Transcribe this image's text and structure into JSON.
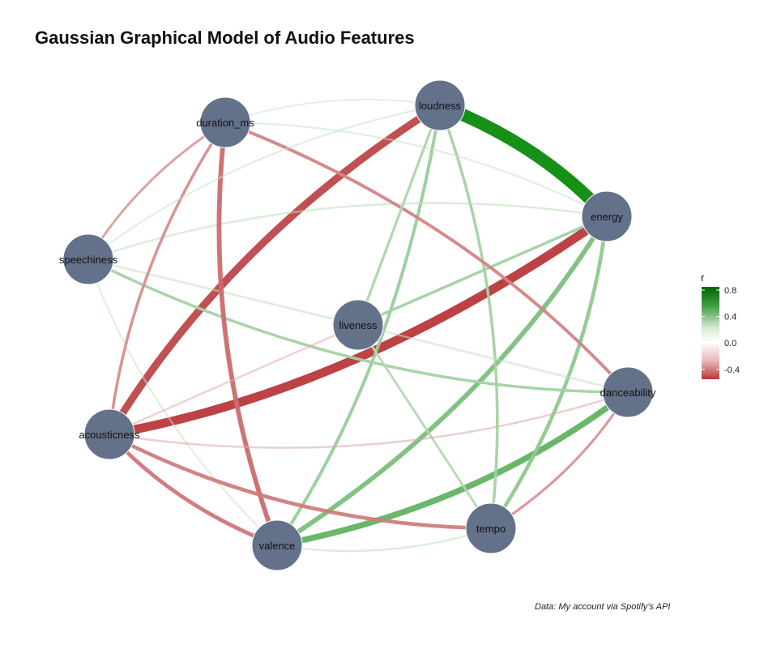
{
  "title": "Gaussian Graphical Model of Audio Features",
  "caption": "Data: My account via Spotify's API",
  "legend": {
    "title": "r",
    "ticks": [
      {
        "label": "0.8",
        "value": 0.8
      },
      {
        "label": "0.4",
        "value": 0.4
      },
      {
        "label": "0.0",
        "value": 0.0
      },
      {
        "label": "-0.4",
        "value": -0.4
      }
    ],
    "range": [
      -0.55,
      0.85
    ],
    "colors": {
      "negative": "#b8383b",
      "zero": "#ffffff",
      "positive": "#0a8a0a"
    }
  },
  "node_color": "#64718a",
  "nodes": [
    {
      "id": "loudness",
      "label": "loudness"
    },
    {
      "id": "energy",
      "label": "energy"
    },
    {
      "id": "danceability",
      "label": "danceability"
    },
    {
      "id": "tempo",
      "label": "tempo"
    },
    {
      "id": "valence",
      "label": "valence"
    },
    {
      "id": "acousticness",
      "label": "acousticness"
    },
    {
      "id": "speechiness",
      "label": "speechiness"
    },
    {
      "id": "duration_ms",
      "label": "duration_ms"
    },
    {
      "id": "liveness",
      "label": "liveness"
    }
  ],
  "edges": [
    {
      "from": "loudness",
      "to": "energy",
      "r": 0.82
    },
    {
      "from": "energy",
      "to": "acousticness",
      "r": -0.55
    },
    {
      "from": "loudness",
      "to": "acousticness",
      "r": -0.45
    },
    {
      "from": "danceability",
      "to": "valence",
      "r": 0.35
    },
    {
      "from": "energy",
      "to": "valence",
      "r": 0.25
    },
    {
      "from": "loudness",
      "to": "valence",
      "r": 0.15
    },
    {
      "from": "loudness",
      "to": "tempo",
      "r": 0.12
    },
    {
      "from": "energy",
      "to": "tempo",
      "r": 0.18
    },
    {
      "from": "energy",
      "to": "liveness",
      "r": 0.12
    },
    {
      "from": "energy",
      "to": "speechiness",
      "r": 0.06
    },
    {
      "from": "valence",
      "to": "tempo",
      "r": 0.05
    },
    {
      "from": "speechiness",
      "to": "danceability",
      "r": 0.12
    },
    {
      "from": "speechiness",
      "to": "liveness",
      "r": 0.06
    },
    {
      "from": "speechiness",
      "to": "valence",
      "r": 0.04
    },
    {
      "from": "liveness",
      "to": "tempo",
      "r": 0.08
    },
    {
      "from": "liveness",
      "to": "danceability",
      "r": 0.05
    },
    {
      "from": "duration_ms",
      "to": "valence",
      "r": -0.25
    },
    {
      "from": "duration_ms",
      "to": "acousticness",
      "r": -0.12
    },
    {
      "from": "duration_ms",
      "to": "danceability",
      "r": -0.15
    },
    {
      "from": "duration_ms",
      "to": "speechiness",
      "r": -0.08
    },
    {
      "from": "duration_ms",
      "to": "loudness",
      "r": 0.03
    },
    {
      "from": "duration_ms",
      "to": "energy",
      "r": 0.04
    },
    {
      "from": "acousticness",
      "to": "valence",
      "r": -0.2
    },
    {
      "from": "acousticness",
      "to": "tempo",
      "r": -0.18
    },
    {
      "from": "acousticness",
      "to": "danceability",
      "r": -0.06
    },
    {
      "from": "acousticness",
      "to": "liveness",
      "r": -0.05
    },
    {
      "from": "danceability",
      "to": "tempo",
      "r": -0.1
    },
    {
      "from": "loudness",
      "to": "liveness",
      "r": 0.1
    },
    {
      "from": "loudness",
      "to": "speechiness",
      "r": 0.04
    }
  ]
}
